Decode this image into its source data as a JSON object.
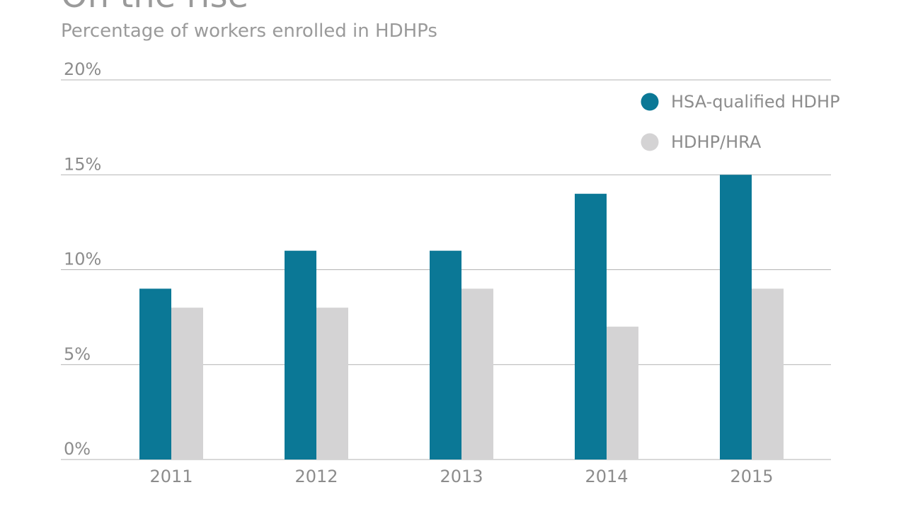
{
  "chart_data": {
    "type": "bar",
    "title": "On the rise",
    "subtitle": "Percentage of workers enrolled in HDHPs",
    "categories": [
      "2011",
      "2012",
      "2013",
      "2014",
      "2015"
    ],
    "series": [
      {
        "name": "HSA-qualified HDHP",
        "values": [
          9,
          11,
          11,
          14,
          15
        ],
        "color": "#0b7896"
      },
      {
        "name": "HDHP/HRA",
        "values": [
          8,
          8,
          9,
          7,
          9
        ],
        "color": "#d4d3d4"
      }
    ],
    "yticks": [
      "0%",
      "5%",
      "10%",
      "15%",
      "20%"
    ],
    "ytick_values": [
      0,
      5,
      10,
      15,
      20
    ],
    "ylim": [
      0,
      20
    ],
    "grid": true,
    "legend_position": "top-right"
  }
}
